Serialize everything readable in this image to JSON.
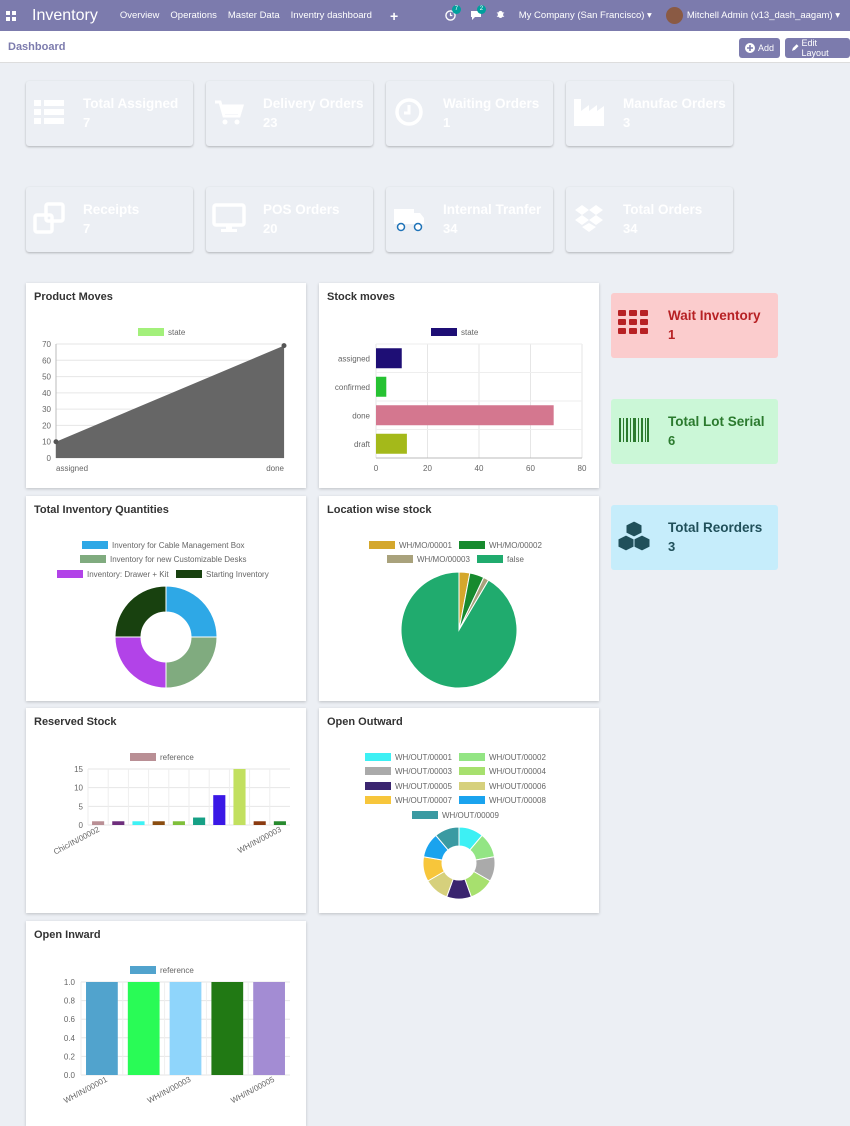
{
  "app": {
    "title": "Inventory",
    "menu": [
      "Overview",
      "Operations",
      "Master Data",
      "Inventry dashboard"
    ],
    "activity_count": "7",
    "message_count": "2",
    "company": "My Company (San Francisco)",
    "user": "Mitchell Admin (v13_dash_aagam)"
  },
  "header": {
    "title": "Dashboard",
    "add_label": "Add",
    "edit_label": "Edit Layout"
  },
  "tiles": [
    {
      "label": "Total Assigned",
      "value": "7",
      "color": "#1f2fb3",
      "icon": "list-icon"
    },
    {
      "label": "Delivery Orders",
      "value": "23",
      "color": "#2bb360",
      "icon": "cart-icon"
    },
    {
      "label": "Waiting Orders",
      "value": "1",
      "color": "#b54144",
      "icon": "clock-icon"
    },
    {
      "label": "Manufac Orders",
      "value": "3",
      "color": "#9c4888",
      "icon": "factory-icon"
    },
    {
      "label": "Receipts",
      "value": "7",
      "color": "#6c8e23",
      "icon": "clone-icon"
    },
    {
      "label": "POS Orders",
      "value": "20",
      "color": "#6b4296",
      "icon": "monitor-icon"
    },
    {
      "label": "Internal Tranfer",
      "value": "34",
      "color": "#1f73b8",
      "icon": "truck-icon"
    },
    {
      "label": "Total Orders",
      "value": "34",
      "color": "#9a8214",
      "icon": "dropbox-icon"
    }
  ],
  "side_tiles": [
    {
      "label": "Wait Inventory",
      "value": "1",
      "bg": "#fbcccd",
      "fg": "#b72124",
      "icon": "grid-icon"
    },
    {
      "label": "Total Lot Serial",
      "value": "6",
      "bg": "#cbf7d7",
      "fg": "#2b7a2e",
      "icon": "barcode-icon"
    },
    {
      "label": "Total Reorders",
      "value": "3",
      "bg": "#c6edfb",
      "fg": "#20505a",
      "icon": "cubes-icon"
    }
  ],
  "cards": {
    "product_moves": "Product Moves",
    "stock_moves": "Stock moves",
    "total_inventory": "Total Inventory Quantities",
    "location_stock": "Location wise stock",
    "reserved_stock": "Reserved Stock",
    "open_outward": "Open Outward",
    "open_inward": "Open Inward"
  },
  "chart_data": [
    {
      "id": "product_moves",
      "type": "area",
      "legend": [
        "state"
      ],
      "categories": [
        "assigned",
        "done"
      ],
      "values": [
        10,
        69
      ],
      "ylim": [
        0,
        70
      ],
      "yticks": [
        0,
        10,
        20,
        30,
        40,
        50,
        60,
        70
      ],
      "colors": {
        "legend": "#a3f07b",
        "fill": "#666666"
      }
    },
    {
      "id": "stock_moves",
      "type": "bar",
      "orientation": "horizontal",
      "legend": [
        "state"
      ],
      "categories": [
        "assigned",
        "confirmed",
        "done",
        "draft"
      ],
      "values": [
        10,
        4,
        69,
        12
      ],
      "xlim": [
        0,
        80
      ],
      "xticks": [
        0,
        20,
        40,
        60,
        80
      ],
      "colors": [
        "#1e0e75",
        "#26c232",
        "#d4778f",
        "#a4b91a"
      ],
      "legend_color": "#1e0e75"
    },
    {
      "id": "total_inventory",
      "type": "doughnut",
      "labels": [
        "Inventory for Cable Management Box",
        "Inventory for new Customizable Desks",
        "Inventory: Drawer + Kit",
        "Starting Inventory"
      ],
      "values": [
        25,
        25,
        25,
        25
      ],
      "colors": [
        "#2ea8e6",
        "#80ab7f",
        "#b243e8",
        "#18410f"
      ]
    },
    {
      "id": "location_stock",
      "type": "pie",
      "labels": [
        "WH/MO/00001",
        "WH/MO/00002",
        "WH/MO/00003",
        "false"
      ],
      "values": [
        3,
        4,
        1.5,
        91.5
      ],
      "colors": [
        "#d4a72c",
        "#178a2e",
        "#a9a27c",
        "#20ab6e"
      ]
    },
    {
      "id": "reserved_stock",
      "type": "bar",
      "legend": [
        "reference"
      ],
      "categories": [
        "Chic/IN/00002",
        "",
        "",
        "",
        "",
        "",
        "",
        "",
        "",
        "WH/IN/00003"
      ],
      "values": [
        1,
        1,
        1,
        1,
        1,
        2,
        8,
        15,
        1,
        1
      ],
      "ylim": [
        0,
        15
      ],
      "yticks": [
        0,
        5,
        10,
        15
      ],
      "colors": [
        "#b98f95",
        "#6e2e7c",
        "#3ff2f5",
        "#8a4d10",
        "#7fbf3a",
        "#16a085",
        "#3a18e6",
        "#c2e05f",
        "#8a3a10",
        "#278a2e"
      ],
      "legend_color": "#b98f95"
    },
    {
      "id": "open_outward",
      "type": "doughnut",
      "labels": [
        "WH/OUT/00001",
        "WH/OUT/00002",
        "WH/OUT/00003",
        "WH/OUT/00004",
        "WH/OUT/00005",
        "WH/OUT/00006",
        "WH/OUT/00007",
        "WH/OUT/00008",
        "WH/OUT/00009"
      ],
      "values": [
        1,
        1,
        1,
        1,
        1,
        1,
        1,
        1,
        1
      ],
      "colors": [
        "#3df0f4",
        "#93e584",
        "#aaaaaa",
        "#a7e06e",
        "#3a256f",
        "#d6d07c",
        "#f7c63b",
        "#1aa3ee",
        "#3a9aa2"
      ]
    },
    {
      "id": "open_inward",
      "type": "bar",
      "legend": [
        "reference"
      ],
      "categories": [
        "WH/IN/00001",
        "",
        "WH/IN/00003",
        "",
        "WH/IN/00005"
      ],
      "values": [
        1,
        1,
        1,
        1,
        1
      ],
      "ylim": [
        0,
        1
      ],
      "yticks": [
        0,
        0.2,
        0.4,
        0.6,
        0.8,
        1.0
      ],
      "colors": [
        "#51a3cd",
        "#29fb56",
        "#8fd5fb",
        "#217914",
        "#a38cd3"
      ],
      "legend_color": "#51a3cd"
    }
  ]
}
